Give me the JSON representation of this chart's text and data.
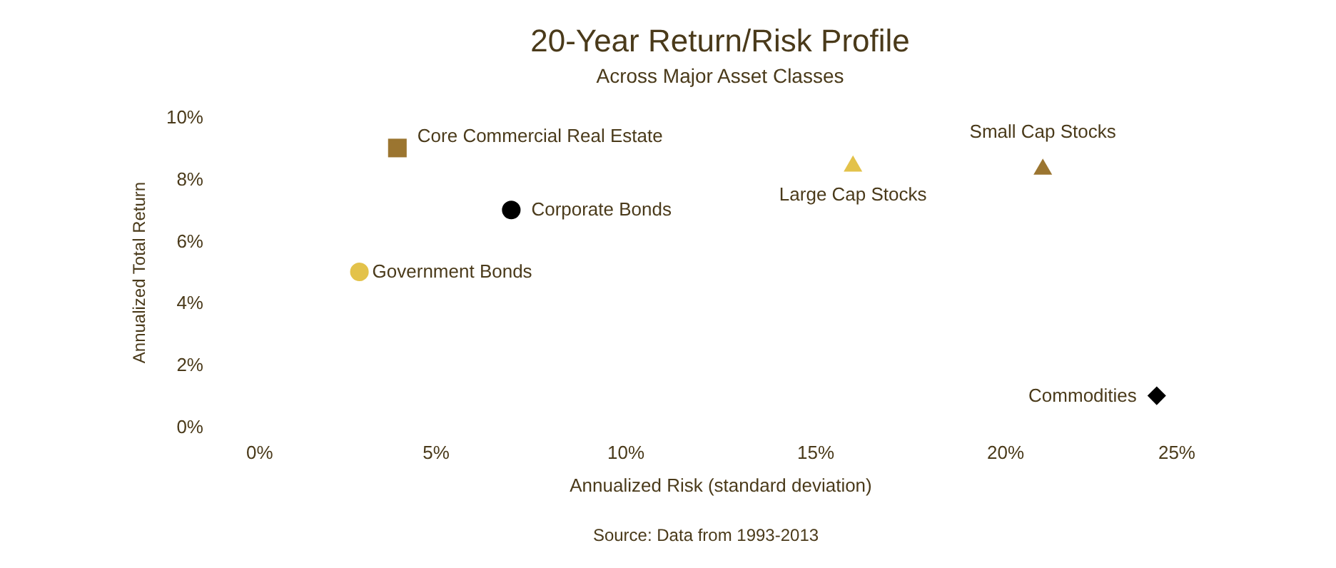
{
  "chart_data": {
    "type": "scatter",
    "title": "20-Year Return/Risk Profile",
    "subtitle": "Across Major Asset Classes",
    "xlabel": "Annualized Risk (standard deviation)",
    "ylabel": "Annualized Total Return",
    "series": [
      {
        "name": "Core Commercial Real Estate",
        "color": "#9b7530",
        "marker": "square",
        "x": [
          4.0
        ],
        "values": [
          9.0
        ]
      },
      {
        "name": "Corporate Bonds",
        "color": "#000000",
        "marker": "circle",
        "x": [
          7.0
        ],
        "values": [
          7.0
        ]
      },
      {
        "name": "Government Bonds",
        "color": "#e3c24a",
        "marker": "circle",
        "x": [
          3.0
        ],
        "values": [
          5.0
        ]
      },
      {
        "name": "Large Cap Stocks",
        "color": "#e3c24a",
        "marker": "triangle",
        "x": [
          16.0
        ],
        "values": [
          8.5
        ]
      },
      {
        "name": "Small Cap Stocks",
        "color": "#9b7530",
        "marker": "triangle",
        "x": [
          21.0
        ],
        "values": [
          8.4
        ]
      },
      {
        "name": "Commodities",
        "color": "#000000",
        "marker": "diamond",
        "x": [
          24.0
        ],
        "values": [
          1.0
        ]
      }
    ],
    "xlim": [
      0,
      25
    ],
    "xticks": [
      {
        "value": 0,
        "label": "0%"
      },
      {
        "value": 5,
        "label": "5%"
      },
      {
        "value": 10,
        "label": "10%"
      },
      {
        "value": 15,
        "label": "15%"
      },
      {
        "value": 20,
        "label": "20%"
      },
      {
        "value": 25,
        "label": "25%"
      }
    ],
    "ylim": [
      0,
      10
    ],
    "yticks": [
      {
        "value": 0,
        "label": "0%"
      },
      {
        "value": 2,
        "label": "2%"
      },
      {
        "value": 4,
        "label": "4%"
      },
      {
        "value": 6,
        "label": "6%"
      },
      {
        "value": 8,
        "label": "8%"
      },
      {
        "value": 10,
        "label": "10%"
      }
    ],
    "annotations": [
      "Source: Data from 1993-2013"
    ]
  }
}
